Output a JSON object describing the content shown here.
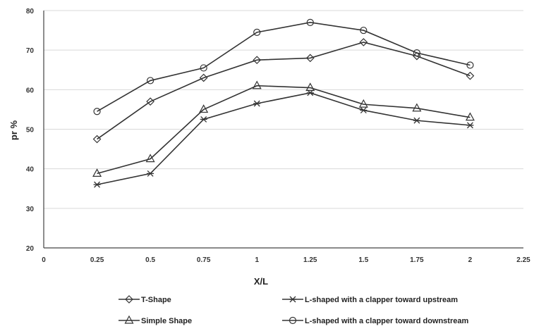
{
  "chart_data": {
    "type": "line",
    "xlabel": "X/L",
    "ylabel": "pr %",
    "xlim": [
      0,
      2.25
    ],
    "ylim": [
      20,
      80
    ],
    "x_ticks": [
      0,
      0.25,
      0.5,
      0.75,
      1,
      1.25,
      1.5,
      1.75,
      2,
      2.25
    ],
    "x_tick_labels": [
      "0",
      "0.25",
      "0.5",
      "0.75",
      "1",
      "1.25",
      "1.5",
      "1.75",
      "2",
      "2.25"
    ],
    "y_ticks": [
      20,
      30,
      40,
      50,
      60,
      70,
      80
    ],
    "y_tick_labels": [
      "20",
      "30",
      "40",
      "50",
      "60",
      "70",
      "80"
    ],
    "grid": "horizontal",
    "legend_position": "bottom",
    "x": [
      0.25,
      0.5,
      0.75,
      1,
      1.25,
      1.5,
      1.75,
      2
    ],
    "series": [
      {
        "name": "T-Shape",
        "marker": "diamond",
        "values": [
          47.5,
          57,
          63,
          67.5,
          68,
          72,
          68.5,
          63.5
        ]
      },
      {
        "name": "L-shaped  with a clapper toward upstream",
        "marker": "star",
        "values": [
          36,
          38.8,
          52.5,
          56.5,
          59.2,
          54.8,
          52.2,
          51
        ]
      },
      {
        "name": "Simple Shape",
        "marker": "triangle",
        "values": [
          38.8,
          42.5,
          55,
          61,
          60.5,
          56.3,
          55.3,
          53
        ]
      },
      {
        "name": "L-shaped with a clapper toward downstream",
        "marker": "circle",
        "values": [
          54.5,
          62.3,
          65.5,
          74.5,
          77,
          75,
          69.3,
          66.2
        ]
      }
    ]
  }
}
